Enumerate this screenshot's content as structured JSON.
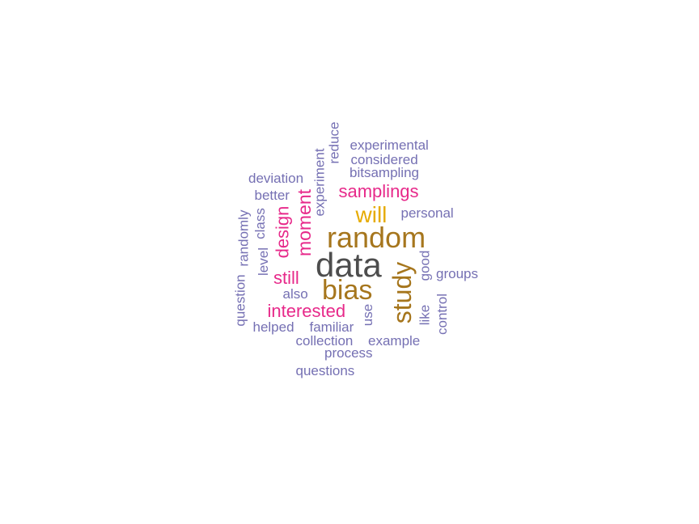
{
  "colors": {
    "gray": "#4d4d4d",
    "brown": "#a6761d",
    "gold": "#e6ab02",
    "magenta": "#e7298a",
    "purple": "#7570b3"
  },
  "words": [
    {
      "id": "data",
      "text": "data",
      "color": "gray",
      "rotated": false
    },
    {
      "id": "random",
      "text": "random",
      "color": "brown",
      "rotated": false
    },
    {
      "id": "bias",
      "text": "bias",
      "color": "brown",
      "rotated": false
    },
    {
      "id": "study",
      "text": "study",
      "color": "brown",
      "rotated": true
    },
    {
      "id": "will",
      "text": "will",
      "color": "gold",
      "rotated": false
    },
    {
      "id": "samplings",
      "text": "samplings",
      "color": "magenta",
      "rotated": false
    },
    {
      "id": "moment",
      "text": "moment",
      "color": "magenta",
      "rotated": true
    },
    {
      "id": "design",
      "text": "design",
      "color": "magenta",
      "rotated": true
    },
    {
      "id": "still",
      "text": "still",
      "color": "magenta",
      "rotated": false
    },
    {
      "id": "interested",
      "text": "interested",
      "color": "magenta",
      "rotated": false
    },
    {
      "id": "experimental",
      "text": "experimental",
      "color": "purple",
      "rotated": false
    },
    {
      "id": "considered",
      "text": "considered",
      "color": "purple",
      "rotated": false
    },
    {
      "id": "bitsampling",
      "text": "bitsampling",
      "color": "purple",
      "rotated": false
    },
    {
      "id": "deviation",
      "text": "deviation",
      "color": "purple",
      "rotated": false
    },
    {
      "id": "better",
      "text": "better",
      "color": "purple",
      "rotated": false
    },
    {
      "id": "personal",
      "text": "personal",
      "color": "purple",
      "rotated": false
    },
    {
      "id": "groups",
      "text": "groups",
      "color": "purple",
      "rotated": false
    },
    {
      "id": "also",
      "text": "also",
      "color": "purple",
      "rotated": false
    },
    {
      "id": "helped",
      "text": "helped",
      "color": "purple",
      "rotated": false
    },
    {
      "id": "familiar",
      "text": "familiar",
      "color": "purple",
      "rotated": false
    },
    {
      "id": "collection",
      "text": "collection",
      "color": "purple",
      "rotated": false
    },
    {
      "id": "example",
      "text": "example",
      "color": "purple",
      "rotated": false
    },
    {
      "id": "process",
      "text": "process",
      "color": "purple",
      "rotated": false
    },
    {
      "id": "questions",
      "text": "questions",
      "color": "purple",
      "rotated": false
    },
    {
      "id": "reduce",
      "text": "reduce",
      "color": "purple",
      "rotated": true
    },
    {
      "id": "experiment",
      "text": "experiment",
      "color": "purple",
      "rotated": true
    },
    {
      "id": "randomly",
      "text": "randomly",
      "color": "purple",
      "rotated": true
    },
    {
      "id": "class",
      "text": "class",
      "color": "purple",
      "rotated": true
    },
    {
      "id": "level",
      "text": "level",
      "color": "purple",
      "rotated": true
    },
    {
      "id": "question",
      "text": "question",
      "color": "purple",
      "rotated": true
    },
    {
      "id": "good",
      "text": "good",
      "color": "purple",
      "rotated": true
    },
    {
      "id": "use",
      "text": "use",
      "color": "purple",
      "rotated": true
    },
    {
      "id": "like",
      "text": "like",
      "color": "purple",
      "rotated": true
    },
    {
      "id": "control",
      "text": "control",
      "color": "purple",
      "rotated": true
    }
  ]
}
